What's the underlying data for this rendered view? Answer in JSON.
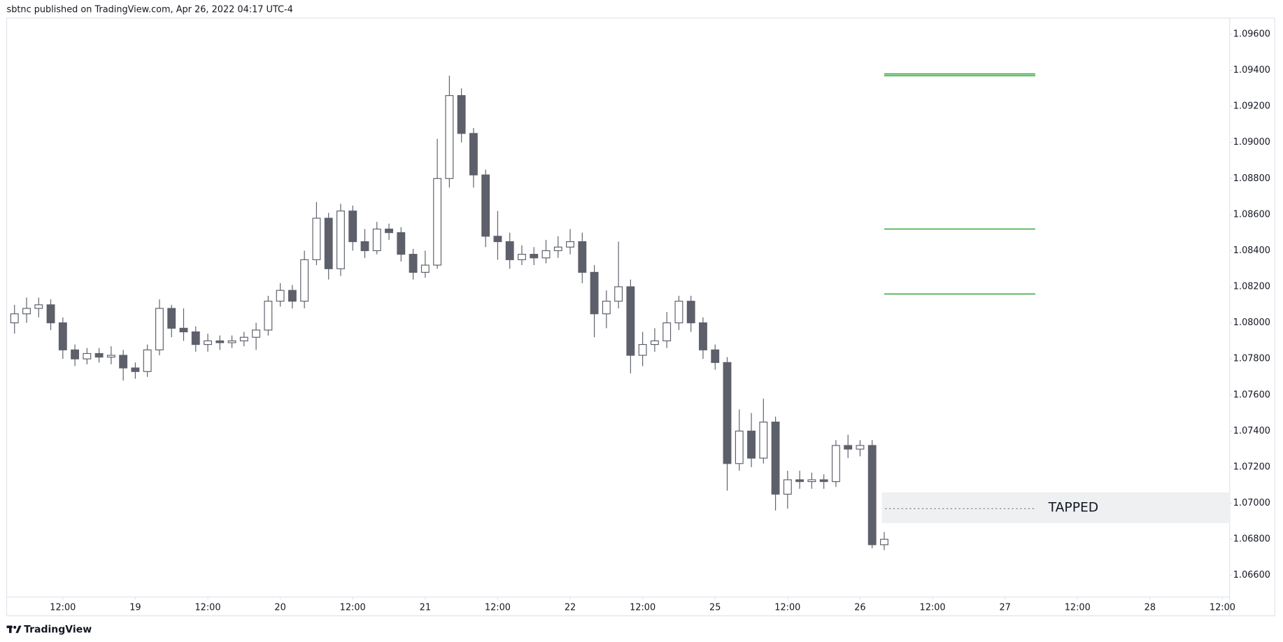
{
  "header": "sbtnc published on TradingView.com, Apr 26, 2022 04:17 UTC-4",
  "footer": "TradingView",
  "chart_data": {
    "type": "candlestick",
    "x": [
      1,
      3,
      5,
      7,
      9,
      11,
      13,
      15,
      17,
      19,
      21,
      23,
      25,
      27,
      29,
      31,
      33,
      35,
      37,
      39,
      41,
      43,
      45,
      47,
      49,
      51,
      53,
      55,
      57,
      59,
      61,
      63,
      65,
      67,
      69,
      71,
      73,
      75,
      77,
      79,
      81,
      83,
      85,
      87,
      89,
      91,
      93,
      95,
      97,
      99,
      101,
      103,
      105,
      107,
      109,
      111,
      113,
      115,
      117,
      119,
      121,
      123,
      125,
      127,
      129,
      131,
      133,
      135,
      137,
      139,
      141,
      143,
      145
    ],
    "open": [
      1.08,
      1.0805,
      1.0808,
      1.081,
      1.08,
      1.0785,
      1.078,
      1.0783,
      1.0781,
      1.0782,
      1.0775,
      1.0773,
      1.0785,
      1.0808,
      1.0797,
      1.0795,
      1.0788,
      1.079,
      1.0789,
      1.079,
      1.0792,
      1.0796,
      1.0812,
      1.0818,
      1.0812,
      1.0835,
      1.0858,
      1.083,
      1.0862,
      1.0845,
      1.084,
      1.0852,
      1.085,
      1.0838,
      1.0828,
      1.0832,
      1.088,
      1.0926,
      1.0905,
      1.0882,
      1.0848,
      1.0845,
      1.0835,
      1.0838,
      1.0836,
      1.084,
      1.0842,
      1.0845,
      1.0828,
      1.0805,
      1.0812,
      1.082,
      1.0782,
      1.0788,
      1.079,
      1.08,
      1.0812,
      1.08,
      1.0785,
      1.0778,
      1.0722,
      1.074,
      1.0725,
      1.0745,
      1.0705,
      1.0713,
      1.0712,
      1.0713,
      1.0712,
      1.0732,
      1.073,
      1.0732,
      1.0677
    ],
    "high": [
      1.081,
      1.0814,
      1.0814,
      1.0813,
      1.0803,
      1.0788,
      1.0786,
      1.0786,
      1.0787,
      1.0785,
      1.0778,
      1.0788,
      1.0813,
      1.081,
      1.0808,
      1.0798,
      1.0794,
      1.0793,
      1.0793,
      1.0795,
      1.08,
      1.0815,
      1.0822,
      1.0821,
      1.084,
      1.0867,
      1.0861,
      1.0866,
      1.0865,
      1.0852,
      1.0856,
      1.0855,
      1.0853,
      1.0841,
      1.084,
      1.0902,
      1.0937,
      1.093,
      1.0908,
      1.0885,
      1.0862,
      1.085,
      1.0843,
      1.0842,
      1.0846,
      1.0848,
      1.0852,
      1.085,
      1.0832,
      1.0818,
      1.0845,
      1.0824,
      1.0795,
      1.0797,
      1.0806,
      1.0815,
      1.0815,
      1.0803,
      1.0788,
      1.0781,
      1.0752,
      1.075,
      1.0758,
      1.0748,
      1.0718,
      1.0718,
      1.0717,
      1.0716,
      1.0735,
      1.0738,
      1.0735,
      1.0735,
      1.0684
    ],
    "low": [
      1.0794,
      1.08,
      1.0803,
      1.0796,
      1.078,
      1.0776,
      1.0777,
      1.0778,
      1.0777,
      1.0768,
      1.0769,
      1.077,
      1.0782,
      1.0792,
      1.079,
      1.0784,
      1.0784,
      1.0785,
      1.0786,
      1.0787,
      1.0785,
      1.0793,
      1.0809,
      1.0808,
      1.0808,
      1.0832,
      1.0824,
      1.0826,
      1.084,
      1.0836,
      1.0838,
      1.0846,
      1.0834,
      1.0824,
      1.0825,
      1.083,
      1.0875,
      1.09,
      1.0875,
      1.0842,
      1.0835,
      1.083,
      1.0832,
      1.0832,
      1.0833,
      1.0836,
      1.0838,
      1.0822,
      1.0792,
      1.0797,
      1.0808,
      1.0772,
      1.0776,
      1.0784,
      1.0786,
      1.0796,
      1.0795,
      1.078,
      1.0774,
      1.0707,
      1.0718,
      1.072,
      1.0722,
      1.0696,
      1.0697,
      1.0708,
      1.0708,
      1.0708,
      1.0709,
      1.0725,
      1.0726,
      1.0675,
      1.0674
    ],
    "close": [
      1.0805,
      1.0808,
      1.081,
      1.08,
      1.0785,
      1.078,
      1.0783,
      1.0781,
      1.0782,
      1.0775,
      1.0773,
      1.0785,
      1.0808,
      1.0797,
      1.0795,
      1.0788,
      1.079,
      1.0789,
      1.079,
      1.0792,
      1.0796,
      1.0812,
      1.0818,
      1.0812,
      1.0835,
      1.0858,
      1.083,
      1.0862,
      1.0845,
      1.084,
      1.0852,
      1.085,
      1.0838,
      1.0828,
      1.0832,
      1.088,
      1.0926,
      1.0905,
      1.0882,
      1.0848,
      1.0845,
      1.0835,
      1.0838,
      1.0836,
      1.084,
      1.0842,
      1.0845,
      1.0828,
      1.0805,
      1.0812,
      1.082,
      1.0782,
      1.0788,
      1.079,
      1.08,
      1.0812,
      1.08,
      1.0785,
      1.0778,
      1.0722,
      1.074,
      1.0725,
      1.0745,
      1.0705,
      1.0713,
      1.0712,
      1.0713,
      1.0712,
      1.0732,
      1.073,
      1.0732,
      1.0677,
      1.068
    ],
    "up_color": "#ffffff",
    "down_color": "#5d606b",
    "outline_color": "#5d606b",
    "xlim": [
      -0.3,
      202.2
    ],
    "xticks": [
      {
        "value": 9,
        "label": "12:00"
      },
      {
        "value": 21,
        "label": "19"
      },
      {
        "value": 33,
        "label": "12:00"
      },
      {
        "value": 45,
        "label": "20"
      },
      {
        "value": 57,
        "label": "12:00"
      },
      {
        "value": 69,
        "label": "21"
      },
      {
        "value": 81,
        "label": "12:00"
      },
      {
        "value": 93,
        "label": "22"
      },
      {
        "value": 105,
        "label": "12:00"
      },
      {
        "value": 117,
        "label": "25"
      },
      {
        "value": 129,
        "label": "12:00"
      },
      {
        "value": 141,
        "label": "26"
      },
      {
        "value": 153,
        "label": "12:00"
      },
      {
        "value": 165,
        "label": "27"
      },
      {
        "value": 177,
        "label": "12:00"
      },
      {
        "value": 189,
        "label": "28"
      },
      {
        "value": 201,
        "label": "12:00"
      }
    ],
    "ylim": [
      1.0648,
      1.0969
    ],
    "yticks": [
      {
        "value": 1.066,
        "label": "1.06600"
      },
      {
        "value": 1.068,
        "label": "1.06800"
      },
      {
        "value": 1.07,
        "label": "1.07000"
      },
      {
        "value": 1.072,
        "label": "1.07200"
      },
      {
        "value": 1.074,
        "label": "1.07400"
      },
      {
        "value": 1.076,
        "label": "1.07600"
      },
      {
        "value": 1.078,
        "label": "1.07800"
      },
      {
        "value": 1.08,
        "label": "1.08000"
      },
      {
        "value": 1.082,
        "label": "1.08200"
      },
      {
        "value": 1.084,
        "label": "1.08400"
      },
      {
        "value": 1.086,
        "label": "1.08600"
      },
      {
        "value": 1.088,
        "label": "1.08800"
      },
      {
        "value": 1.09,
        "label": "1.09000"
      },
      {
        "value": 1.092,
        "label": "1.09200"
      },
      {
        "value": 1.094,
        "label": "1.09400"
      },
      {
        "value": 1.096,
        "label": "1.09600"
      }
    ],
    "grid": false,
    "levels": [
      {
        "value": 1.0938,
        "x_start": 145,
        "x_end": 170,
        "color": "#4caf50"
      },
      {
        "value": 1.0937,
        "x_start": 145,
        "x_end": 170,
        "color": "#4caf50"
      },
      {
        "value": 1.0852,
        "x_start": 145,
        "x_end": 170,
        "color": "#4caf50"
      },
      {
        "value": 1.0816,
        "x_start": 145,
        "x_end": 170,
        "color": "#4caf50"
      }
    ],
    "zone": {
      "low": 1.0689,
      "high": 1.0706,
      "mid": 1.0697,
      "x_start": 144.6,
      "line_end": 170,
      "color": "#eff0f2",
      "label": "TAPPED"
    }
  }
}
